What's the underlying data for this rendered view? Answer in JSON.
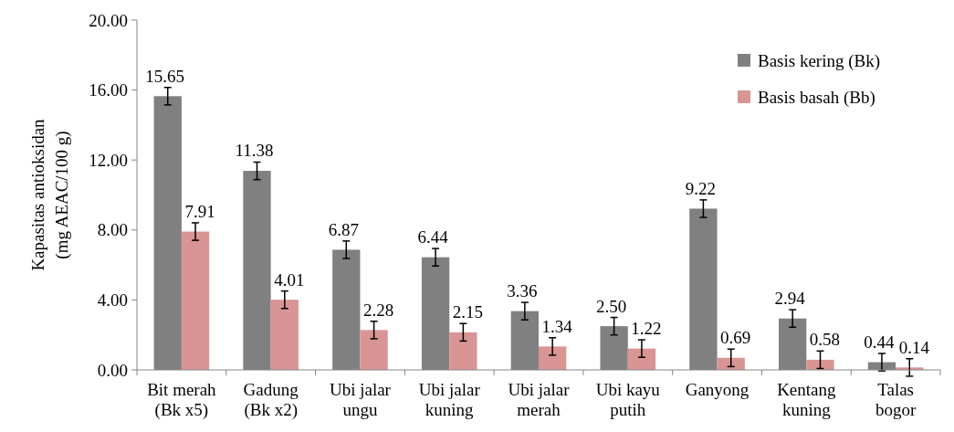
{
  "chart_data": {
    "type": "bar",
    "ylabel": "Kapasitas antioksidan\n(mg AEAC/100 g)",
    "categories": [
      "Bit merah\n(Bk x5)",
      "Gadung\n(Bk x2)",
      "Ubi jalar\nungu",
      "Ubi jalar\nkuning",
      "Ubi jalar\nmerah",
      "Ubi kayu\nputih",
      "Ganyong",
      "Kentang\nkuning",
      "Talas\nbogor"
    ],
    "series": [
      {
        "name": "Basis kering (Bk)",
        "color": "#808080",
        "values": [
          15.65,
          11.38,
          6.87,
          6.44,
          3.36,
          2.5,
          9.22,
          2.94,
          0.44
        ],
        "value_labels": [
          "15.65",
          "11.38",
          "6.87",
          "6.44",
          "3.36",
          "2.50",
          "9.22",
          "2.94",
          "0.44"
        ],
        "errors": [
          0.5,
          0.5,
          0.5,
          0.5,
          0.5,
          0.5,
          0.5,
          0.5,
          0.5
        ]
      },
      {
        "name": "Basis basah (Bb)",
        "color": "#d99594",
        "values": [
          7.91,
          4.01,
          2.28,
          2.15,
          1.34,
          1.22,
          0.69,
          0.58,
          0.14
        ],
        "value_labels": [
          "7.91",
          "4.01",
          "2.28",
          "2.15",
          "1.34",
          "1.22",
          "0.69",
          "0.58",
          "0.14"
        ],
        "errors": [
          0.5,
          0.5,
          0.5,
          0.5,
          0.5,
          0.5,
          0.5,
          0.5,
          0.5
        ]
      }
    ],
    "ylim": [
      0,
      20
    ],
    "yticks": [
      {
        "value": 0,
        "label": "0.00"
      },
      {
        "value": 4,
        "label": "4.00"
      },
      {
        "value": 8,
        "label": "8.00"
      },
      {
        "value": 12,
        "label": "12.00"
      },
      {
        "value": 16,
        "label": "16.00"
      },
      {
        "value": 20,
        "label": "20.00"
      }
    ],
    "legend": "top right",
    "grid": false
  }
}
